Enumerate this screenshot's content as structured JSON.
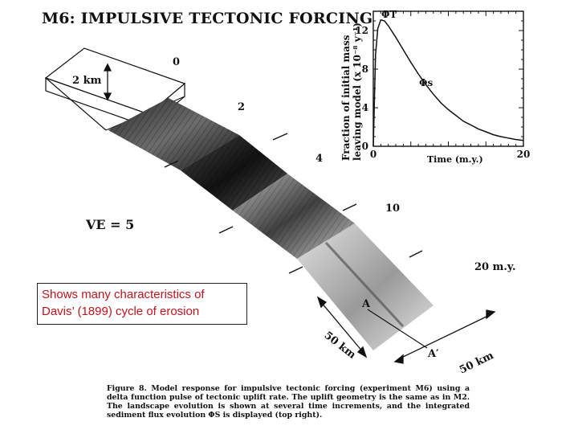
{
  "title": "M6: IMPULSIVE TECTONIC FORCING",
  "callout": {
    "line1": "Shows many characteristics of",
    "line2": "Davis’ (1899) cycle of erosion"
  },
  "ve_label": "VE = 5",
  "relief_label": "2 km",
  "time_labels": [
    "0",
    "2",
    "4",
    "10",
    "20 m.y."
  ],
  "dist_labels": [
    "50 km",
    "50 km"
  ],
  "section_labels": [
    "A",
    "A′"
  ],
  "caption": {
    "lead": "Figure 8.",
    "body": "Model response for impulsive tectonic forcing (experiment M6) using a delta function pulse of tectonic uplift rate. The uplift geometry is the same as in M2. The landscape evolution is shown at several time increments, and the integrated sediment flux evolution ΦS is displayed (top right)."
  },
  "chart_data": {
    "type": "line",
    "title": "",
    "xlabel": "Time (m.y.)",
    "ylabel_line1": "Fraction of initial mass",
    "ylabel_line2": "leaving model (x 10⁻⁸ y⁻¹)",
    "xlim": [
      0,
      20
    ],
    "ylim": [
      0,
      14
    ],
    "x_ticks": [
      "0",
      "20"
    ],
    "y_ticks": [
      "0",
      "4",
      "8",
      "12"
    ],
    "series": [
      {
        "name": "ΦT",
        "x": [
          0,
          0.3,
          0.6,
          1.0,
          1.5,
          2,
          3,
          4,
          5,
          6,
          7,
          8,
          9,
          10,
          11,
          12,
          13,
          14,
          15,
          16,
          17,
          18,
          19,
          20
        ],
        "values": [
          0,
          9.5,
          12.2,
          13.1,
          13.0,
          12.5,
          11.3,
          10.0,
          8.7,
          7.5,
          6.4,
          5.4,
          4.5,
          3.8,
          3.2,
          2.6,
          2.2,
          1.8,
          1.5,
          1.2,
          1.0,
          0.85,
          0.7,
          0.6
        ]
      }
    ],
    "curve_labels": [
      "ΦT",
      "Φs"
    ],
    "grid": false
  },
  "colors": {
    "callout_text": "#c0141b",
    "ink": "#111111",
    "paper": "#ffffff"
  }
}
